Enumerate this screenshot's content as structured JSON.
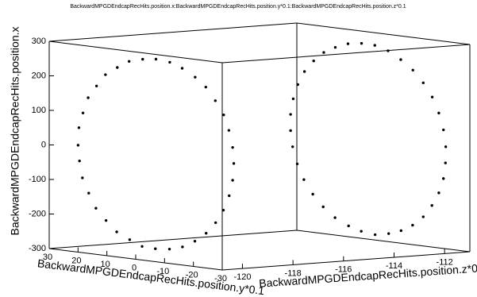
{
  "chart_data": {
    "type": "scatter3d",
    "title": "BackwardMPGDEndcapRecHits.position.x:BackwardMPGDEndcapRecHits.position.y*0.1:BackwardMPGDEndcapRecHits.position.z*0.1",
    "xlabel": "BackwardMPGDEndcapRecHits.position.x",
    "ylabel": "BackwardMPGDEndcapRecHits.position.y*0.1",
    "zlabel": "BackwardMPGDEndcapRecHits.position.z*0.1",
    "xlim": [
      -300,
      300
    ],
    "xticks": [
      -300,
      -200,
      -100,
      0,
      100,
      200,
      300
    ],
    "ylim": [
      -30,
      30
    ],
    "yticks": [
      30,
      20,
      10,
      0,
      -10,
      -20,
      -30
    ],
    "zlim": [
      -120.8,
      -111
    ],
    "zticks": [
      -120,
      -118,
      -116,
      -114,
      -112
    ],
    "series": [
      {
        "color": "#000000",
        "x": [
          275,
          270,
          259,
          237,
          212,
          176,
          139,
          93,
          49,
          -2,
          -47,
          -95,
          -137,
          -178,
          -210,
          -239,
          -257,
          -272,
          -274,
          -270,
          -259,
          -238,
          -211,
          -177,
          -138,
          -94,
          -48,
          1,
          47,
          95,
          138,
          176,
          212,
          237,
          258,
          271
        ],
        "y": [
          0,
          4.6,
          9.3,
          13.4,
          17.5,
          20.6,
          23.5,
          25.3,
          26.7,
          27,
          26.5,
          25.5,
          23.3,
          20.8,
          17.3,
          13.6,
          9.1,
          4.8,
          0.2,
          -4.7,
          -9.2,
          -13.5,
          -17.4,
          -20.7,
          -23.4,
          -25.4,
          -26.6,
          -27,
          -26.6,
          -25.3,
          -23.5,
          -20.6,
          -17.3,
          -13.6,
          -9.1,
          -4.8
        ],
        "z": [
          -120,
          -120,
          -120,
          -120,
          -120,
          -120,
          -120,
          -120,
          -120,
          -120,
          -120,
          -120,
          -120,
          -120,
          -120,
          -120,
          -120,
          -120,
          -120,
          -120,
          -120,
          -120,
          -120,
          -120,
          -120,
          -120,
          -120,
          -120,
          -120,
          -120,
          -120,
          -120,
          -120,
          -120,
          -120,
          -120
        ]
      },
      {
        "color": "#000000",
        "x": [
          273,
          267,
          252,
          233,
          205,
          171,
          131,
          88,
          42,
          -5,
          -51,
          -99,
          -142,
          -181,
          -214,
          -241,
          -260,
          -271,
          -276,
          -268,
          -255,
          -235,
          -207,
          -171,
          -132,
          -89,
          -43,
          4,
          52,
          99,
          143,
          181,
          214,
          240,
          261,
          272
        ],
        "y": [
          2.3,
          7,
          11.4,
          15.4,
          18.9,
          22.1,
          24.4,
          26,
          26.9,
          26.9,
          26.2,
          24.6,
          22.3,
          19.2,
          15.6,
          11.5,
          6.8,
          2.4,
          -2.4,
          -7.1,
          -11.4,
          -15.4,
          -19.1,
          -22.1,
          -24.5,
          -26.1,
          -26.8,
          -26.9,
          -26.1,
          -24.5,
          -22.2,
          -19.1,
          -15.5,
          -11.3,
          -6.9,
          -2.3
        ],
        "z": [
          -111.6,
          -111.6,
          -111.6,
          -111.6,
          -111.6,
          -111.6,
          -111.6,
          -111.6,
          -111.6,
          -111.6,
          -111.6,
          -111.6,
          -111.6,
          -111.6,
          -111.6,
          -111.6,
          -111.6,
          -111.6,
          -111.6,
          -111.6,
          -111.6,
          -111.6,
          -111.6,
          -111.6,
          -111.6,
          -111.6,
          -111.6,
          -111.6,
          -111.6,
          -111.6,
          -111.6,
          -111.6,
          -111.6,
          -111.6,
          -111.6,
          -111.6
        ]
      }
    ]
  }
}
